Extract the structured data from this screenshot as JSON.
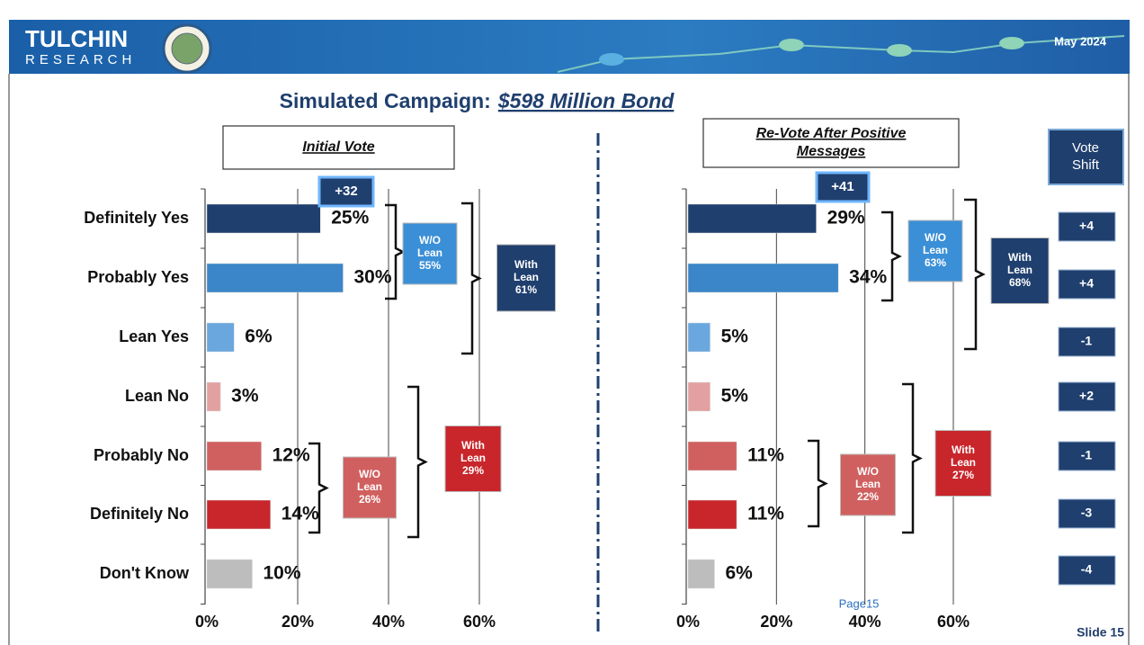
{
  "header": {
    "logo_top": "TULCHIN",
    "logo_bottom": "RESEARCH",
    "date": "May 2024"
  },
  "title": {
    "prefix": "Simulated Campaign:",
    "emphasis": "$598 Million Bond"
  },
  "chart_data": [
    {
      "type": "bar",
      "orientation": "horizontal",
      "title": "Initial Vote",
      "categories": [
        "Definitely Yes",
        "Probably Yes",
        "Lean Yes",
        "Lean No",
        "Probably No",
        "Definitely No",
        "Don't Know"
      ],
      "values": [
        25,
        30,
        6,
        3,
        12,
        14,
        10
      ],
      "value_labels": [
        "25%",
        "30%",
        "6%",
        "3%",
        "12%",
        "14%",
        "10%"
      ],
      "colors": [
        "#1f3f6e",
        "#3a86c8",
        "#6aa7df",
        "#e3a0a0",
        "#d0605f",
        "#c8262b",
        "#bdbdbd"
      ],
      "xlim": [
        0,
        60
      ],
      "xticks": [
        {
          "value": 0,
          "label": "0%"
        },
        {
          "value": 20,
          "label": "20%"
        },
        {
          "value": 40,
          "label": "40%"
        },
        {
          "value": 60,
          "label": "60%"
        }
      ],
      "grid": true,
      "annotations": [
        [
          "+32"
        ],
        [
          "W/O",
          "Lean",
          "55%"
        ],
        [
          "With",
          "Lean",
          "61%"
        ],
        [
          "W/O",
          "Lean",
          "26%"
        ],
        [
          "With",
          "Lean",
          "29%"
        ]
      ]
    },
    {
      "type": "bar",
      "orientation": "horizontal",
      "title": "Re-Vote After Positive Messages",
      "values": [
        29,
        34,
        5,
        5,
        11,
        11,
        6
      ],
      "value_labels": [
        "29%",
        "34%",
        "5%",
        "5%",
        "11%",
        "11%",
        "6%"
      ],
      "colors": [
        "#1f3f6e",
        "#3a86c8",
        "#6aa7df",
        "#e3a0a0",
        "#d0605f",
        "#c8262b",
        "#bdbdbd"
      ],
      "xlim": [
        0,
        60
      ],
      "xticks": [
        {
          "value": 0,
          "label": "0%"
        },
        {
          "value": 20,
          "label": "20%"
        },
        {
          "value": 40,
          "label": "40%"
        },
        {
          "value": 60,
          "label": "60%"
        }
      ],
      "grid": true,
      "annotations": [
        [
          "+41"
        ],
        [
          "W/O",
          "Lean",
          "63%"
        ],
        [
          "With",
          "Lean",
          "68%"
        ],
        [
          "W/O",
          "Lean",
          "22%"
        ],
        [
          "With",
          "Lean",
          "27%"
        ]
      ]
    }
  ],
  "vote_shift": {
    "title": "Vote Shift",
    "values": [
      "+4",
      "+4",
      "-1",
      "+2",
      "-1",
      "-3",
      "-4"
    ]
  },
  "footer": {
    "page": "Page15",
    "slide": "Slide 15"
  }
}
